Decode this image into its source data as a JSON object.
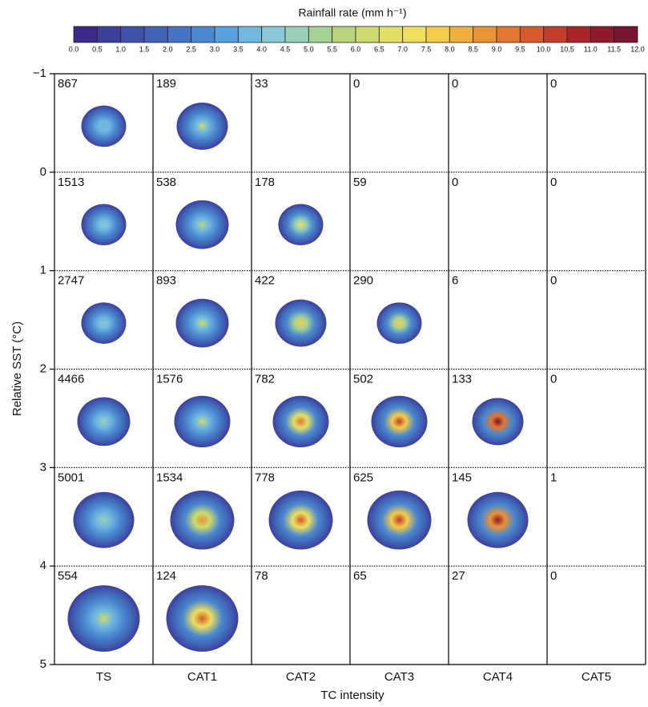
{
  "chart_data": {
    "type": "panel-grid",
    "colorbar_title": "Rainfall rate (mm h⁻¹)",
    "colorbar_ticks": [
      {
        "value": 0,
        "label": "0.0"
      },
      {
        "value": 0.5,
        "label": "0.5"
      },
      {
        "value": 1,
        "label": "1.0"
      },
      {
        "value": 1.5,
        "label": "1.5"
      },
      {
        "value": 2,
        "label": "2.0"
      },
      {
        "value": 2.5,
        "label": "2.5"
      },
      {
        "value": 3,
        "label": "3.0"
      },
      {
        "value": 3.5,
        "label": "3.5"
      },
      {
        "value": 4,
        "label": "4.0"
      },
      {
        "value": 4.5,
        "label": "4.5"
      },
      {
        "value": 5,
        "label": "5.0"
      },
      {
        "value": 5.5,
        "label": "5.5"
      },
      {
        "value": 6,
        "label": "6.0"
      },
      {
        "value": 6.5,
        "label": "6.5"
      },
      {
        "value": 7,
        "label": "7.0"
      },
      {
        "value": 7.5,
        "label": "7.5"
      },
      {
        "value": 8,
        "label": "8.0"
      },
      {
        "value": 8.5,
        "label": "8.5"
      },
      {
        "value": 9,
        "label": "9.0"
      },
      {
        "value": 9.5,
        "label": "9.5"
      },
      {
        "value": 10,
        "label": "10.0"
      },
      {
        "value": 10.5,
        "label": "10.5"
      },
      {
        "value": 11,
        "label": "11.0"
      },
      {
        "value": 11.5,
        "label": "11.5"
      },
      {
        "value": 12,
        "label": "12.0"
      }
    ],
    "colorbar_lim": [
      0,
      12
    ],
    "colors": [
      "#3d2a8a",
      "#3d3f99",
      "#3f52a8",
      "#4063b5",
      "#4575c2",
      "#4a88cf",
      "#5aa0dc",
      "#70b8e0",
      "#8ac8d8",
      "#98cfb8",
      "#a6d296",
      "#b8d57e",
      "#cddb6e",
      "#e1e066",
      "#ede05e",
      "#f3cc4a",
      "#efb13e",
      "#e99436",
      "#e27731",
      "#d55a2d",
      "#c23c2a",
      "#a8262a",
      "#8e1a2b",
      "#761630"
    ],
    "ylabel": "Relative SST (°C)",
    "ylim": [
      -1,
      5
    ],
    "yticks": [
      {
        "value": -1,
        "label": "−1"
      },
      0,
      1,
      2,
      3,
      4,
      5
    ],
    "xlabel": "TC intensity",
    "categories": [
      "TS",
      "CAT1",
      "CAT2",
      "CAT3",
      "CAT4",
      "CAT5"
    ],
    "counts": [
      [
        867,
        189,
        33,
        0,
        0,
        0
      ],
      [
        1513,
        538,
        178,
        59,
        0,
        0
      ],
      [
        2747,
        893,
        422,
        290,
        6,
        0
      ],
      [
        4466,
        1576,
        782,
        502,
        133,
        0
      ],
      [
        5001,
        1534,
        778,
        625,
        145,
        1
      ],
      [
        554,
        124,
        78,
        65,
        27,
        0
      ]
    ]
  }
}
